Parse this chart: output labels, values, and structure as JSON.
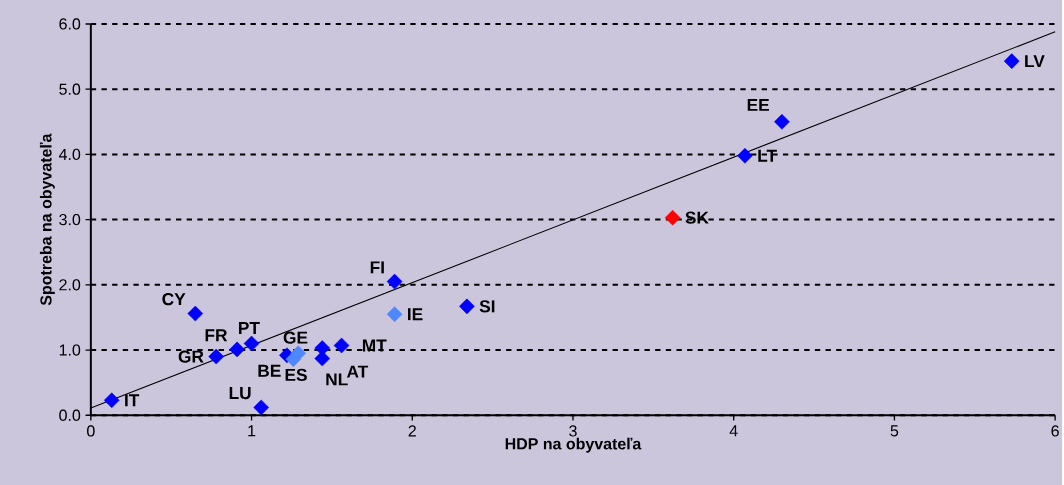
{
  "chart_data": {
    "type": "scatter",
    "xlabel": "HDP na obyvateľa",
    "ylabel": "Spotreba na obyvateľa",
    "xlim": [
      0,
      6
    ],
    "ylim": [
      0,
      6
    ],
    "xticks": [
      0,
      1,
      2,
      3,
      4,
      5,
      6
    ],
    "yticks": [
      {
        "value": 0,
        "label": "0.0"
      },
      {
        "value": 1,
        "label": "1.0"
      },
      {
        "value": 2,
        "label": "2.0"
      },
      {
        "value": 3,
        "label": "3.0"
      },
      {
        "value": 4,
        "label": "4.0"
      },
      {
        "value": 5,
        "label": "5.0"
      },
      {
        "value": 6,
        "label": "6.0"
      }
    ],
    "grid": "y",
    "series": [
      {
        "marker": "diamond",
        "x": [
          0.13,
          1.06,
          0.78,
          0.91,
          1.0,
          0.65,
          1.22,
          1.26,
          1.29,
          1.44,
          1.44,
          1.56,
          1.89,
          1.89,
          2.34,
          3.62,
          4.07,
          4.3,
          5.73
        ],
        "values": [
          0.23,
          0.12,
          0.9,
          1.01,
          1.1,
          1.56,
          0.92,
          0.86,
          0.95,
          0.87,
          1.03,
          1.07,
          2.05,
          1.55,
          1.67,
          3.03,
          3.98,
          4.5,
          5.43
        ],
        "colors": [
          "#0000ff",
          "#0000ff",
          "#0000ff",
          "#0000ff",
          "#0000ff",
          "#0000ff",
          "#0000ff",
          "#4d88ff",
          "#4d88ff",
          "#0000ff",
          "#0000ff",
          "#0000ff",
          "#0000ff",
          "#4d88ff",
          "#0000ff",
          "#ff0000",
          "#0000ff",
          "#0000ff",
          "#0000ff"
        ]
      },
      {
        "type": "line",
        "x": [
          0,
          6
        ],
        "values": [
          0.11,
          5.88
        ],
        "color": "#000000"
      }
    ],
    "annotations": [
      {
        "text": "IT",
        "x": 0.13,
        "y": 0.23
      },
      {
        "text": "LU",
        "x": 1.06,
        "y": 0.12
      },
      {
        "text": "GR",
        "x": 0.78,
        "y": 0.9
      },
      {
        "text": "FR",
        "x": 0.91,
        "y": 1.01
      },
      {
        "text": "PT",
        "x": 1.0,
        "y": 1.1
      },
      {
        "text": "CY",
        "x": 0.65,
        "y": 1.56
      },
      {
        "text": "BE",
        "x": 1.22,
        "y": 0.92
      },
      {
        "text": "ES",
        "x": 1.26,
        "y": 0.86
      },
      {
        "text": "GE",
        "x": 1.29,
        "y": 0.95
      },
      {
        "text": "NL",
        "x": 1.44,
        "y": 0.87
      },
      {
        "text": "AT",
        "x": 1.44,
        "y": 1.03
      },
      {
        "text": "MT",
        "x": 1.56,
        "y": 1.07
      },
      {
        "text": "FI",
        "x": 1.89,
        "y": 2.05
      },
      {
        "text": "IE",
        "x": 1.89,
        "y": 1.55
      },
      {
        "text": "SI",
        "x": 2.34,
        "y": 1.67
      },
      {
        "text": "SK",
        "x": 3.62,
        "y": 3.03
      },
      {
        "text": "LT",
        "x": 4.07,
        "y": 3.98
      },
      {
        "text": "EE",
        "x": 4.3,
        "y": 4.5
      },
      {
        "text": "LV",
        "x": 5.73,
        "y": 5.43
      }
    ]
  }
}
